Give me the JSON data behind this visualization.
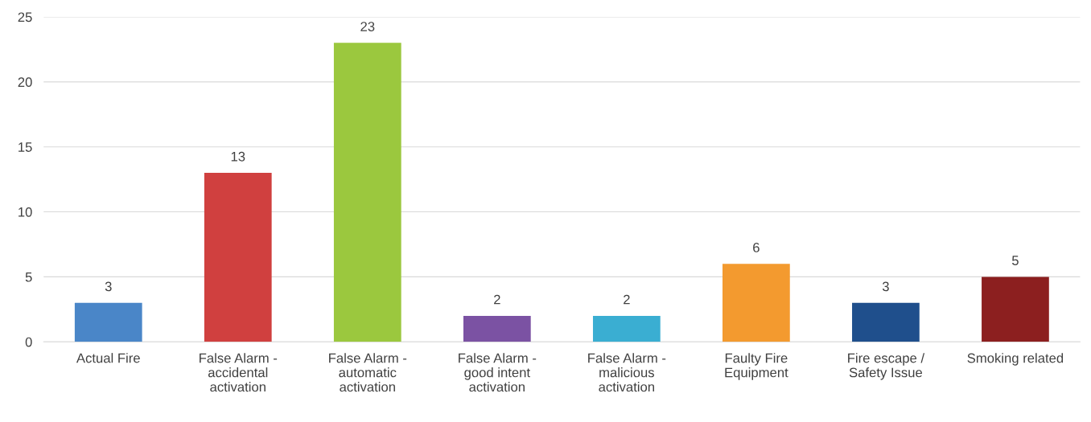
{
  "chart_data": {
    "type": "bar",
    "categories": [
      "Actual Fire",
      "False Alarm -\naccidental\nactivation",
      "False Alarm -\nautomatic\nactivation",
      "False Alarm -\ngood intent\nactivation",
      "False Alarm -\nmalicious\nactivation",
      "Faulty Fire\nEquipment",
      "Fire escape /\nSafety Issue",
      "Smoking related"
    ],
    "values": [
      3,
      13,
      23,
      2,
      2,
      6,
      3,
      5
    ],
    "colors": [
      "#4a86c8",
      "#d0403f",
      "#9bc83e",
      "#7b52a3",
      "#3aaed2",
      "#f39a2f",
      "#1f4f8c",
      "#8c1f1f"
    ],
    "ylim": [
      0,
      25
    ],
    "yticks": [
      0,
      5,
      10,
      15,
      20,
      25
    ],
    "grid": "y",
    "data_labels": true
  }
}
